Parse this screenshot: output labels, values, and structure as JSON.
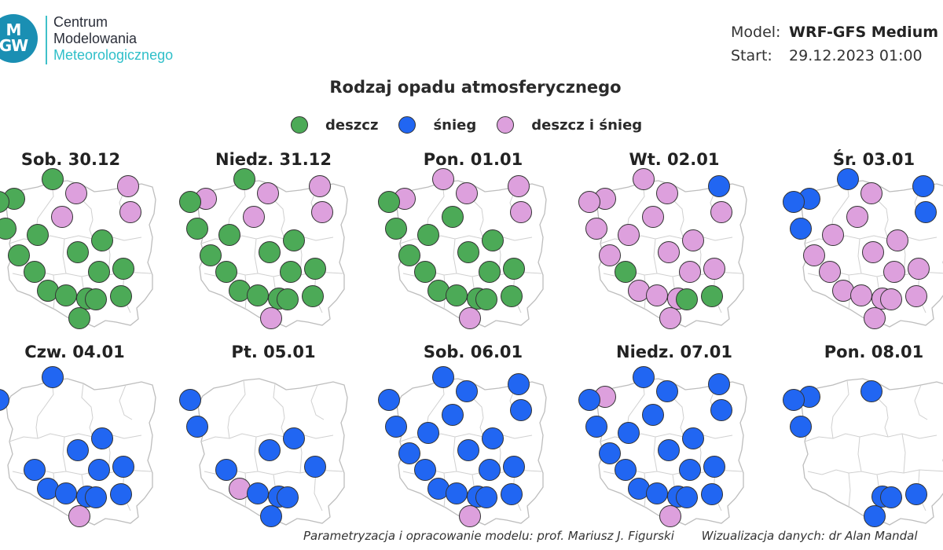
{
  "header": {
    "logo": {
      "badge_line1": "M",
      "badge_line2": "GW",
      "line1": "Centrum",
      "line2": "Modelowania",
      "line3": "Meteorologicznego"
    },
    "model_label": "Model:",
    "model_value": "WRF-GFS Medium",
    "start_label": "Start:",
    "start_value": "29.12.2023 01:00"
  },
  "title": "Rodzaj opadu atmosferycznego",
  "legend": [
    {
      "key": "rain",
      "label": "deszcz",
      "color": "#4caa57"
    },
    {
      "key": "snow",
      "label": "śnieg",
      "color": "#2166f2"
    },
    {
      "key": "mixed",
      "label": "deszcz i śnieg",
      "color": "#dda0dd"
    }
  ],
  "days": [
    {
      "label": "Sob. 30.12",
      "points": {
        "nw": "rain",
        "ntr": "rain",
        "e": "mixed",
        "ne": "mixed",
        "wf": "rain",
        "w": "rain",
        "cw": "rain",
        "cn": "mixed",
        "c": "rain",
        "ce": "rain",
        "sw": "rain",
        "c2": "rain",
        "se": "rain",
        "s1": "rain",
        "s2": "rain",
        "s3": "rain",
        "s4": "rain",
        "s5": "rain",
        "s6": "rain",
        "s7": "rain",
        "nne": "mixed"
      }
    },
    {
      "label": "Niedz. 31.12",
      "points": {
        "nw": "mixed",
        "ntr": "rain",
        "e": "mixed",
        "ne": "mixed",
        "wf": "rain",
        "w": "rain",
        "cw": "rain",
        "cn": "mixed",
        "c": "rain",
        "ce": "rain",
        "sw": "rain",
        "c2": "rain",
        "se": "rain",
        "s1": "rain",
        "s2": "rain",
        "s3": "rain",
        "s4": "rain",
        "s5": "rain",
        "s6": "rain",
        "s7": "mixed",
        "nne": "mixed"
      }
    },
    {
      "label": "Pon. 01.01",
      "points": {
        "nw": "mixed",
        "ntr": "mixed",
        "e": "mixed",
        "ne": "mixed",
        "wf": "rain",
        "w": "rain",
        "cw": "rain",
        "cn": "rain",
        "c": "rain",
        "ce": "rain",
        "sw": "rain",
        "c2": "rain",
        "se": "rain",
        "s1": "rain",
        "s2": "rain",
        "s3": "rain",
        "s4": "rain",
        "s5": "rain",
        "s6": "rain",
        "s7": "mixed",
        "nne": "mixed"
      }
    },
    {
      "label": "Wt. 02.01",
      "points": {
        "nw": "mixed",
        "ntr": "mixed",
        "e": "snow",
        "ne": "mixed",
        "wf": "mixed",
        "w": "mixed",
        "cw": "mixed",
        "cn": "mixed",
        "c": "mixed",
        "ce": "mixed",
        "sw": "mixed",
        "c2": "mixed",
        "se": "mixed",
        "s1": "rain",
        "s2": "mixed",
        "s3": "mixed",
        "s4": "mixed",
        "s5": "rain",
        "s6": "rain",
        "s7": "mixed",
        "nne": "mixed"
      }
    },
    {
      "label": "Śr. 03.01",
      "points": {
        "nw": "snow",
        "ntr": "snow",
        "e": "snow",
        "ne": "snow",
        "wf": "snow",
        "w": "snow",
        "cw": "mixed",
        "cn": "mixed",
        "c": "mixed",
        "ce": "mixed",
        "sw": "mixed",
        "c2": "mixed",
        "se": "mixed",
        "s1": "mixed",
        "s2": "mixed",
        "s3": "mixed",
        "s4": "mixed",
        "s5": "mixed",
        "s6": "mixed",
        "s7": "mixed",
        "nne": "mixed"
      }
    },
    {
      "label": "Czw. 04.01",
      "points": {
        "ntr": "snow",
        "wf": "snow",
        "c": "snow",
        "ce": "snow",
        "s1": "snow",
        "s2": "snow",
        "s3": "snow",
        "s4": "snow",
        "s5": "snow",
        "s6": "snow",
        "s7": "mixed",
        "se": "snow",
        "c2": "snow"
      }
    },
    {
      "label": "Pt. 05.01",
      "points": {
        "wf": "snow",
        "w": "snow",
        "c": "snow",
        "ce": "snow",
        "s1": "snow",
        "s2": "mixed",
        "s3": "snow",
        "s4": "snow",
        "s5": "snow",
        "s7": "snow",
        "se": "snow"
      }
    },
    {
      "label": "Sob. 06.01",
      "points": {
        "ntr": "snow",
        "e": "snow",
        "nne": "snow",
        "ne": "snow",
        "cn": "snow",
        "cw": "snow",
        "wf": "snow",
        "w": "snow",
        "c": "snow",
        "ce": "snow",
        "c2": "snow",
        "sw": "snow",
        "s1": "snow",
        "s2": "snow",
        "s3": "snow",
        "s4": "snow",
        "s5": "snow",
        "s6": "snow",
        "se": "snow",
        "s7": "mixed"
      }
    },
    {
      "label": "Niedz. 07.01",
      "points": {
        "nw": "mixed",
        "ntr": "snow",
        "e": "snow",
        "nne": "snow",
        "ne": "snow",
        "cn": "snow",
        "cw": "snow",
        "wf": "snow",
        "w": "snow",
        "c": "snow",
        "ce": "snow",
        "c2": "snow",
        "sw": "snow",
        "s1": "snow",
        "s2": "snow",
        "s3": "snow",
        "s4": "snow",
        "s5": "snow",
        "s6": "snow",
        "se": "snow",
        "s7": "mixed"
      }
    },
    {
      "label": "Pon. 08.01",
      "points": {
        "nw": "snow",
        "nne": "snow",
        "wf": "snow",
        "w": "snow",
        "s4": "snow",
        "s5": "snow",
        "s6": "snow",
        "s7": "snow"
      }
    }
  ],
  "credits": {
    "left": "Parametryzacja i opracowanie modelu: prof. Mariusz J. Figurski",
    "right": "Wizualizacja danych: dr Alan Mandal"
  }
}
